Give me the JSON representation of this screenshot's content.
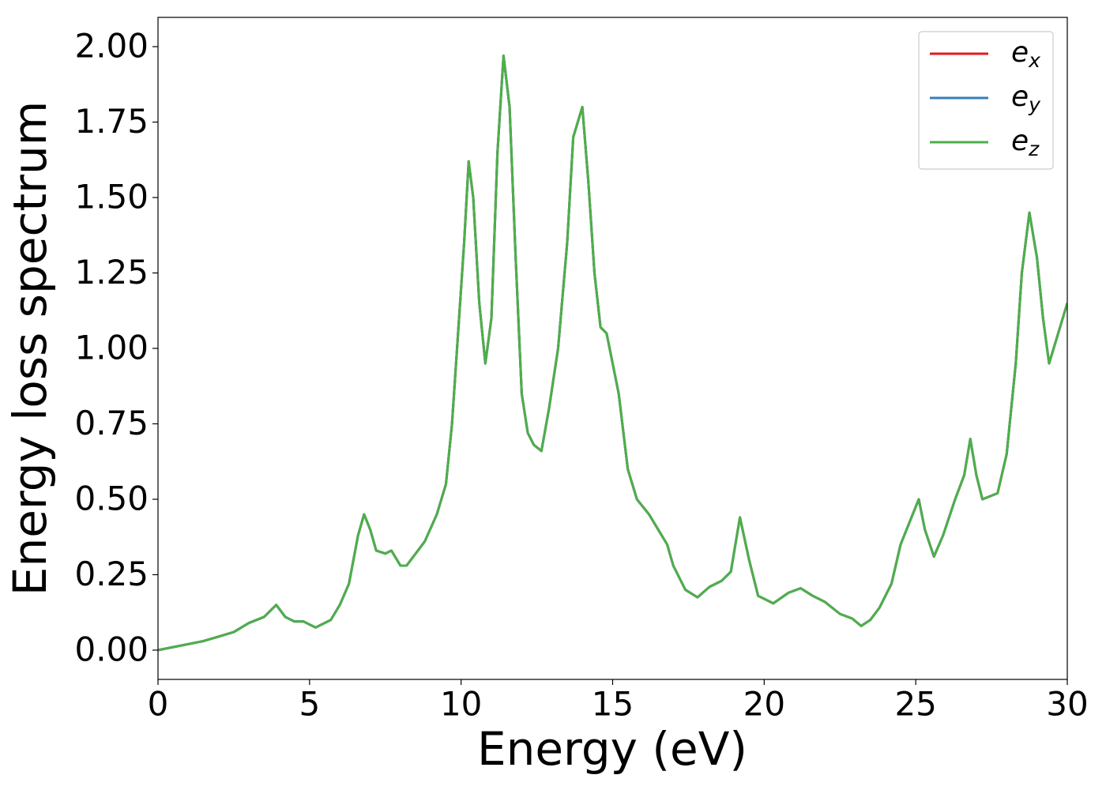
{
  "chart_data": {
    "type": "line",
    "x_label": "Energy (eV)",
    "y_label": "Energy loss spectrum",
    "x": [
      0,
      0.5,
      1.0,
      1.5,
      2.0,
      2.5,
      3.0,
      3.5,
      3.9,
      4.2,
      4.5,
      4.8,
      5.2,
      5.7,
      6.0,
      6.3,
      6.6,
      6.8,
      7.0,
      7.2,
      7.5,
      7.7,
      8.0,
      8.2,
      8.5,
      8.8,
      9.2,
      9.5,
      9.7,
      9.9,
      10.1,
      10.25,
      10.4,
      10.6,
      10.8,
      11.0,
      11.2,
      11.4,
      11.6,
      11.8,
      12.0,
      12.2,
      12.4,
      12.65,
      12.9,
      13.2,
      13.5,
      13.7,
      14.0,
      14.2,
      14.4,
      14.6,
      14.8,
      15.0,
      15.2,
      15.5,
      15.8,
      16.2,
      16.5,
      16.8,
      17.0,
      17.4,
      17.8,
      18.2,
      18.6,
      18.9,
      19.2,
      19.5,
      19.8,
      20.3,
      20.8,
      21.2,
      21.6,
      22.0,
      22.5,
      22.9,
      23.2,
      23.5,
      23.8,
      24.2,
      24.5,
      24.9,
      25.1,
      25.3,
      25.6,
      25.9,
      26.3,
      26.6,
      26.8,
      27.0,
      27.2,
      27.7,
      28.0,
      28.3,
      28.5,
      28.75,
      29.0,
      29.2,
      29.4,
      29.7,
      30.0
    ],
    "series": [
      {
        "name": "e",
        "subscript": "x",
        "color": "#e41a1c",
        "values": [
          0.0,
          0.01,
          0.02,
          0.03,
          0.045,
          0.06,
          0.09,
          0.11,
          0.15,
          0.11,
          0.095,
          0.095,
          0.075,
          0.1,
          0.15,
          0.22,
          0.38,
          0.45,
          0.4,
          0.33,
          0.32,
          0.33,
          0.28,
          0.28,
          0.32,
          0.36,
          0.45,
          0.55,
          0.75,
          1.05,
          1.35,
          1.62,
          1.5,
          1.15,
          0.95,
          1.1,
          1.65,
          1.97,
          1.8,
          1.3,
          0.85,
          0.72,
          0.68,
          0.66,
          0.8,
          1.0,
          1.35,
          1.7,
          1.8,
          1.55,
          1.25,
          1.07,
          1.05,
          0.95,
          0.85,
          0.6,
          0.5,
          0.45,
          0.4,
          0.35,
          0.28,
          0.2,
          0.175,
          0.21,
          0.23,
          0.26,
          0.44,
          0.3,
          0.18,
          0.155,
          0.19,
          0.205,
          0.18,
          0.16,
          0.12,
          0.105,
          0.08,
          0.1,
          0.14,
          0.22,
          0.35,
          0.45,
          0.5,
          0.4,
          0.31,
          0.38,
          0.5,
          0.58,
          0.7,
          0.58,
          0.5,
          0.52,
          0.65,
          0.95,
          1.25,
          1.45,
          1.3,
          1.1,
          0.95,
          1.05,
          1.15
        ]
      },
      {
        "name": "e",
        "subscript": "y",
        "color": "#377eb8",
        "values": [
          0.0,
          0.01,
          0.02,
          0.03,
          0.045,
          0.06,
          0.09,
          0.11,
          0.15,
          0.11,
          0.095,
          0.095,
          0.075,
          0.1,
          0.15,
          0.22,
          0.38,
          0.45,
          0.4,
          0.33,
          0.32,
          0.33,
          0.28,
          0.28,
          0.32,
          0.36,
          0.45,
          0.55,
          0.75,
          1.05,
          1.35,
          1.62,
          1.5,
          1.15,
          0.95,
          1.1,
          1.65,
          1.97,
          1.8,
          1.3,
          0.85,
          0.72,
          0.68,
          0.66,
          0.8,
          1.0,
          1.35,
          1.7,
          1.8,
          1.55,
          1.25,
          1.07,
          1.05,
          0.95,
          0.85,
          0.6,
          0.5,
          0.45,
          0.4,
          0.35,
          0.28,
          0.2,
          0.175,
          0.21,
          0.23,
          0.26,
          0.44,
          0.3,
          0.18,
          0.155,
          0.19,
          0.205,
          0.18,
          0.16,
          0.12,
          0.105,
          0.08,
          0.1,
          0.14,
          0.22,
          0.35,
          0.45,
          0.5,
          0.4,
          0.31,
          0.38,
          0.5,
          0.58,
          0.7,
          0.58,
          0.5,
          0.52,
          0.65,
          0.95,
          1.25,
          1.45,
          1.3,
          1.1,
          0.95,
          1.05,
          1.15
        ]
      },
      {
        "name": "e",
        "subscript": "z",
        "color": "#4daf4a",
        "values": [
          0.0,
          0.01,
          0.02,
          0.03,
          0.045,
          0.06,
          0.09,
          0.11,
          0.15,
          0.11,
          0.095,
          0.095,
          0.075,
          0.1,
          0.15,
          0.22,
          0.38,
          0.45,
          0.4,
          0.33,
          0.32,
          0.33,
          0.28,
          0.28,
          0.32,
          0.36,
          0.45,
          0.55,
          0.75,
          1.05,
          1.35,
          1.62,
          1.5,
          1.15,
          0.95,
          1.1,
          1.65,
          1.97,
          1.8,
          1.3,
          0.85,
          0.72,
          0.68,
          0.66,
          0.8,
          1.0,
          1.35,
          1.7,
          1.8,
          1.55,
          1.25,
          1.07,
          1.05,
          0.95,
          0.85,
          0.6,
          0.5,
          0.45,
          0.4,
          0.35,
          0.28,
          0.2,
          0.175,
          0.21,
          0.23,
          0.26,
          0.44,
          0.3,
          0.18,
          0.155,
          0.19,
          0.205,
          0.18,
          0.16,
          0.12,
          0.105,
          0.08,
          0.1,
          0.14,
          0.22,
          0.35,
          0.45,
          0.5,
          0.4,
          0.31,
          0.38,
          0.5,
          0.58,
          0.7,
          0.58,
          0.5,
          0.52,
          0.65,
          0.95,
          1.25,
          1.45,
          1.3,
          1.1,
          0.95,
          1.05,
          1.15
        ]
      }
    ],
    "xlim": [
      0,
      30
    ],
    "xticks": [
      0,
      5,
      10,
      15,
      20,
      25,
      30
    ],
    "ylim": [
      -0.097,
      2.097
    ],
    "yticks": [
      {
        "value": 0,
        "label": "0.00"
      },
      0.25,
      {
        "value": 0.5,
        "label": "0.50"
      },
      0.75,
      {
        "value": 1,
        "label": "1.00"
      },
      1.25,
      {
        "value": 1.5,
        "label": "1.50"
      },
      1.75,
      {
        "value": 2,
        "label": "2.00"
      }
    ],
    "grid": false,
    "legend": "upper right"
  }
}
